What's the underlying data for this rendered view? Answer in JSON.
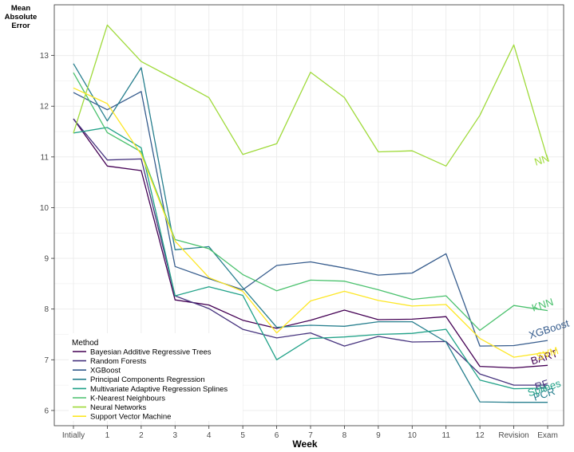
{
  "chart_data": {
    "type": "line",
    "ylabel": "Mean\nAbsolute\nError",
    "xlabel": "Week",
    "categories": [
      "Intially",
      "1",
      "2",
      "3",
      "4",
      "5",
      "6",
      "7",
      "8",
      "9",
      "10",
      "11",
      "12",
      "Revision",
      "Exam"
    ],
    "ylim": [
      5.7,
      14.0
    ],
    "yticks": [
      6,
      7,
      8,
      9,
      10,
      11,
      12,
      13
    ],
    "grid": true,
    "legend": {
      "title": "Method",
      "placement": "bottom-left"
    },
    "series": [
      {
        "name": "Bayesian Additive Regressive Trees",
        "label": "BART",
        "color": "#440154",
        "values": [
          11.75,
          10.82,
          10.73,
          8.18,
          8.08,
          7.78,
          7.62,
          7.78,
          7.98,
          7.79,
          7.8,
          7.85,
          6.87,
          6.84,
          6.89
        ]
      },
      {
        "name": "Random Forests",
        "label": "RF",
        "color": "#46337E",
        "values": [
          11.75,
          10.94,
          10.96,
          8.26,
          8.01,
          7.6,
          7.43,
          7.53,
          7.27,
          7.46,
          7.35,
          7.36,
          6.72,
          6.5,
          6.5
        ]
      },
      {
        "name": "XGBoost",
        "label": "XGBoost",
        "color": "#365C8D",
        "values": [
          12.27,
          11.93,
          12.29,
          8.84,
          8.6,
          8.38,
          8.86,
          8.93,
          8.81,
          8.67,
          8.71,
          9.09,
          7.27,
          7.28,
          7.38
        ]
      },
      {
        "name": "Principal Components Regression",
        "label": "PCR",
        "color": "#277F8E",
        "values": [
          12.84,
          11.71,
          12.76,
          9.17,
          9.23,
          8.42,
          7.64,
          7.68,
          7.66,
          7.75,
          7.75,
          7.35,
          6.17,
          6.16,
          6.16
        ]
      },
      {
        "name": "Multivariate Adaptive Regression Splines",
        "label": "Splines",
        "color": "#1FA187",
        "values": [
          11.47,
          11.58,
          11.18,
          8.26,
          8.44,
          8.27,
          7.0,
          7.42,
          7.45,
          7.5,
          7.52,
          7.6,
          6.6,
          6.43,
          6.44
        ]
      },
      {
        "name": "K-Nearest Neighbours",
        "label": "KNN",
        "color": "#4AC16D",
        "values": [
          12.66,
          11.48,
          11.1,
          9.37,
          9.19,
          8.68,
          8.36,
          8.57,
          8.55,
          8.38,
          8.19,
          8.26,
          7.58,
          8.07,
          7.97
        ]
      },
      {
        "name": "Neural Networks",
        "label": "NN",
        "color": "#9FDA3A",
        "values": [
          11.47,
          13.6,
          12.88,
          12.53,
          12.17,
          11.05,
          11.26,
          12.67,
          12.17,
          11.1,
          11.12,
          10.82,
          11.82,
          13.21,
          10.95
        ]
      },
      {
        "name": "Support Vector Machine",
        "label": "SVM",
        "color": "#FDE725",
        "values": [
          12.36,
          12.05,
          11.05,
          9.34,
          8.62,
          8.35,
          7.53,
          8.16,
          8.35,
          8.17,
          8.06,
          8.09,
          7.42,
          7.05,
          7.15
        ]
      }
    ]
  }
}
